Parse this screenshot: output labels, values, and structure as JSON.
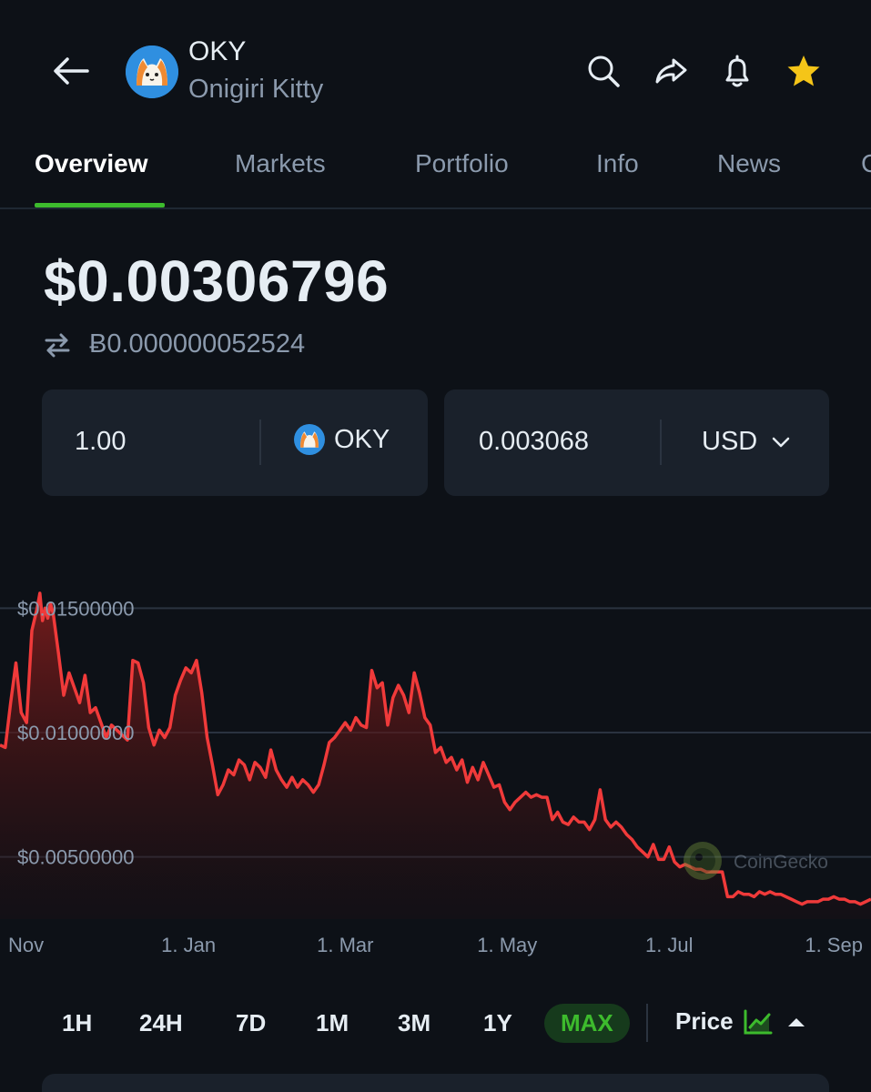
{
  "header": {
    "symbol": "OKY",
    "name": "Onigiri Kitty",
    "icons": [
      "back-arrow-icon",
      "search-icon",
      "share-icon",
      "bell-icon",
      "star-icon"
    ],
    "star_color": "#f5c518"
  },
  "tabs": [
    {
      "label": "Overview",
      "active": true
    },
    {
      "label": "Markets",
      "active": false
    },
    {
      "label": "Portfolio",
      "active": false
    },
    {
      "label": "Info",
      "active": false
    },
    {
      "label": "News",
      "active": false
    },
    {
      "label": "C",
      "active": false
    }
  ],
  "price": {
    "usd": "$0.00306796",
    "btc": "Ƀ0.000000052524"
  },
  "converter": {
    "left_value": "1.00",
    "left_unit": "OKY",
    "right_value": "0.003068",
    "right_unit": "USD"
  },
  "chart_data": {
    "type": "area",
    "watermark": "CoinGecko",
    "line_color": "#f03a3a",
    "ylim": [
      0.0025,
      0.0175
    ],
    "y_ticks": [
      0.005,
      0.01,
      0.015
    ],
    "y_tick_labels": [
      "$0.00500000",
      "$0.01000000",
      "$0.01500000"
    ],
    "x_tick_labels": [
      "Nov",
      "1. Jan",
      "1. Mar",
      "1. May",
      "1. Jul",
      "1. Sep"
    ],
    "x_tick_days": [
      0,
      61,
      120,
      181,
      242,
      304
    ],
    "xlim": [
      -10,
      318
    ],
    "series": [
      {
        "x": [
          -10,
          -8,
          -6,
          -4,
          -2,
          0,
          2,
          4,
          5,
          6,
          7,
          8,
          9,
          10,
          12,
          14,
          16,
          18,
          20,
          22,
          24,
          26,
          28,
          30,
          32,
          34,
          36,
          38,
          40,
          42,
          44,
          46,
          48,
          50,
          52,
          54,
          56,
          58,
          60,
          62,
          64,
          66,
          68,
          70,
          72,
          74,
          76,
          78,
          80,
          82,
          84,
          86,
          88,
          90,
          92,
          94,
          96,
          98,
          100,
          102,
          104,
          106,
          108,
          110,
          112,
          114,
          116,
          118,
          120,
          122,
          124,
          126,
          128,
          130,
          132,
          134,
          136,
          138,
          140,
          142,
          144,
          146,
          148,
          150,
          152,
          154,
          156,
          158,
          160,
          162,
          164,
          166,
          168,
          170,
          172,
          174,
          176,
          178,
          180,
          182,
          184,
          186,
          188,
          190,
          192,
          194,
          196,
          198,
          200,
          202,
          204,
          206,
          208,
          210,
          212,
          214,
          216,
          218,
          220,
          222,
          224,
          226,
          228,
          230,
          232,
          234,
          236,
          238,
          240,
          242,
          244,
          246,
          248,
          250,
          252,
          254,
          256,
          258,
          260,
          262,
          264,
          266,
          268,
          270,
          272,
          274,
          276,
          278,
          280,
          282,
          284,
          286,
          288,
          290,
          292,
          294,
          296,
          298,
          300,
          302,
          304,
          306,
          308,
          310,
          312,
          314,
          316,
          318
        ],
        "values": [
          0.0095,
          0.0094,
          0.0112,
          0.0128,
          0.0108,
          0.0104,
          0.0141,
          0.015,
          0.0156,
          0.0145,
          0.015,
          0.0146,
          0.0152,
          0.0148,
          0.0132,
          0.0115,
          0.0124,
          0.0118,
          0.0112,
          0.0123,
          0.0108,
          0.011,
          0.0104,
          0.0098,
          0.0103,
          0.0101,
          0.0099,
          0.0097,
          0.0129,
          0.0128,
          0.012,
          0.0102,
          0.0095,
          0.0101,
          0.0098,
          0.0102,
          0.0115,
          0.0121,
          0.0126,
          0.0124,
          0.0129,
          0.0116,
          0.0098,
          0.0087,
          0.0075,
          0.0079,
          0.0085,
          0.0083,
          0.0089,
          0.0087,
          0.0081,
          0.0088,
          0.0086,
          0.0082,
          0.0093,
          0.0085,
          0.0081,
          0.0078,
          0.0082,
          0.0078,
          0.0081,
          0.0079,
          0.0076,
          0.0079,
          0.0087,
          0.0096,
          0.0098,
          0.0101,
          0.0104,
          0.0101,
          0.0106,
          0.0103,
          0.0102,
          0.0125,
          0.0118,
          0.012,
          0.0103,
          0.0114,
          0.0119,
          0.0115,
          0.0108,
          0.0124,
          0.0116,
          0.0106,
          0.0103,
          0.0092,
          0.0094,
          0.0088,
          0.009,
          0.0085,
          0.0089,
          0.008,
          0.0086,
          0.0081,
          0.0088,
          0.0083,
          0.0078,
          0.0079,
          0.0072,
          0.0069,
          0.0072,
          0.0074,
          0.0076,
          0.0074,
          0.0075,
          0.0074,
          0.0074,
          0.0065,
          0.0068,
          0.0064,
          0.0063,
          0.0066,
          0.0064,
          0.0064,
          0.0061,
          0.0065,
          0.0077,
          0.0065,
          0.0062,
          0.0064,
          0.0062,
          0.0059,
          0.0057,
          0.0054,
          0.0052,
          0.005,
          0.0055,
          0.0049,
          0.0049,
          0.0054,
          0.0048,
          0.0046,
          0.0047,
          0.0046,
          0.0045,
          0.0045,
          0.0044,
          0.0044,
          0.0044,
          0.0044,
          0.0034,
          0.0034,
          0.0036,
          0.0035,
          0.0035,
          0.0034,
          0.0036,
          0.0035,
          0.0036,
          0.0035,
          0.0035,
          0.0034,
          0.0033,
          0.0032,
          0.0031,
          0.0032,
          0.0032,
          0.0032,
          0.0033,
          0.0033,
          0.0034,
          0.0033,
          0.0033,
          0.0032,
          0.0032,
          0.0031,
          0.0032,
          0.0033
        ]
      }
    ],
    "grid": true,
    "legend": false
  },
  "timeframes": [
    {
      "label": "1H",
      "active": false
    },
    {
      "label": "24H",
      "active": false
    },
    {
      "label": "7D",
      "active": false
    },
    {
      "label": "1M",
      "active": false
    },
    {
      "label": "3M",
      "active": false
    },
    {
      "label": "1Y",
      "active": false
    },
    {
      "label": "MAX",
      "active": true
    }
  ],
  "chart_mode": {
    "label": "Price",
    "icon": "line-chart-icon",
    "icon_color": "#3dbb2d"
  }
}
